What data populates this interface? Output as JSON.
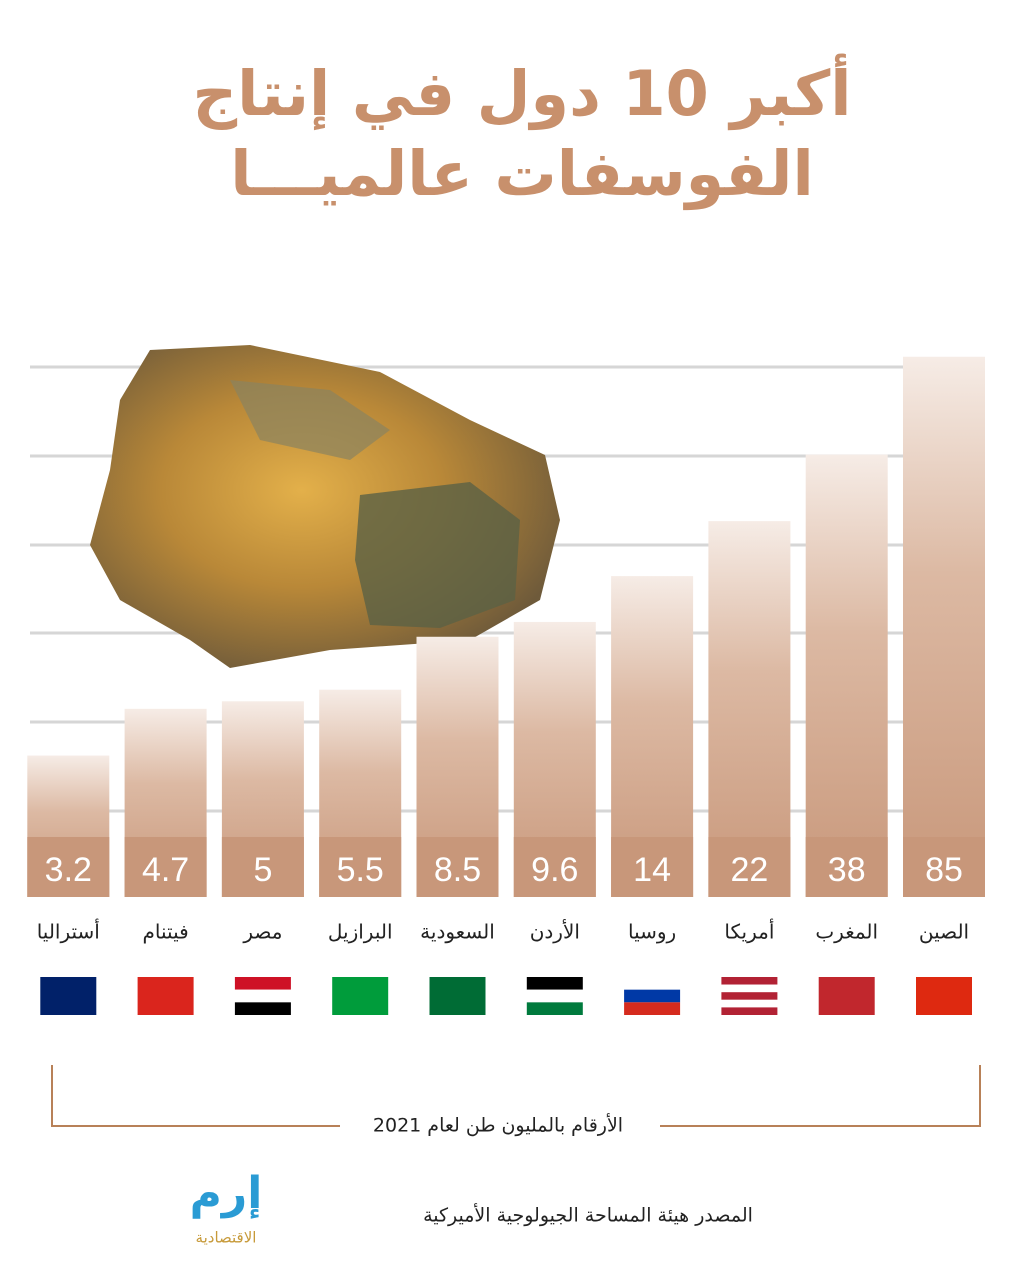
{
  "chart_data": {
    "type": "bar",
    "title": "أكبر 10 دول في إنتاج",
    "subtitle": "الفوسفات عالميـــا",
    "categories": [
      "الصين",
      "المغرب",
      "أمريكا",
      "روسيا",
      "الأردن",
      "السعودية",
      "البرازيل",
      "مصر",
      "فيتنام",
      "أستراليا"
    ],
    "values": [
      85,
      38,
      22,
      14,
      9.6,
      8.5,
      5.5,
      5,
      4.7,
      3.2
    ],
    "color": "#c8977a",
    "log_scale": true,
    "ylim": [
      1,
      100
    ],
    "note": "الأرقام بالمليون طن لعام 2021",
    "source": "المصدر هيئة المساحة الجيولوجية الأميركية",
    "logo": {
      "name": "إرم",
      "tagline": "الاقتصادية"
    }
  }
}
